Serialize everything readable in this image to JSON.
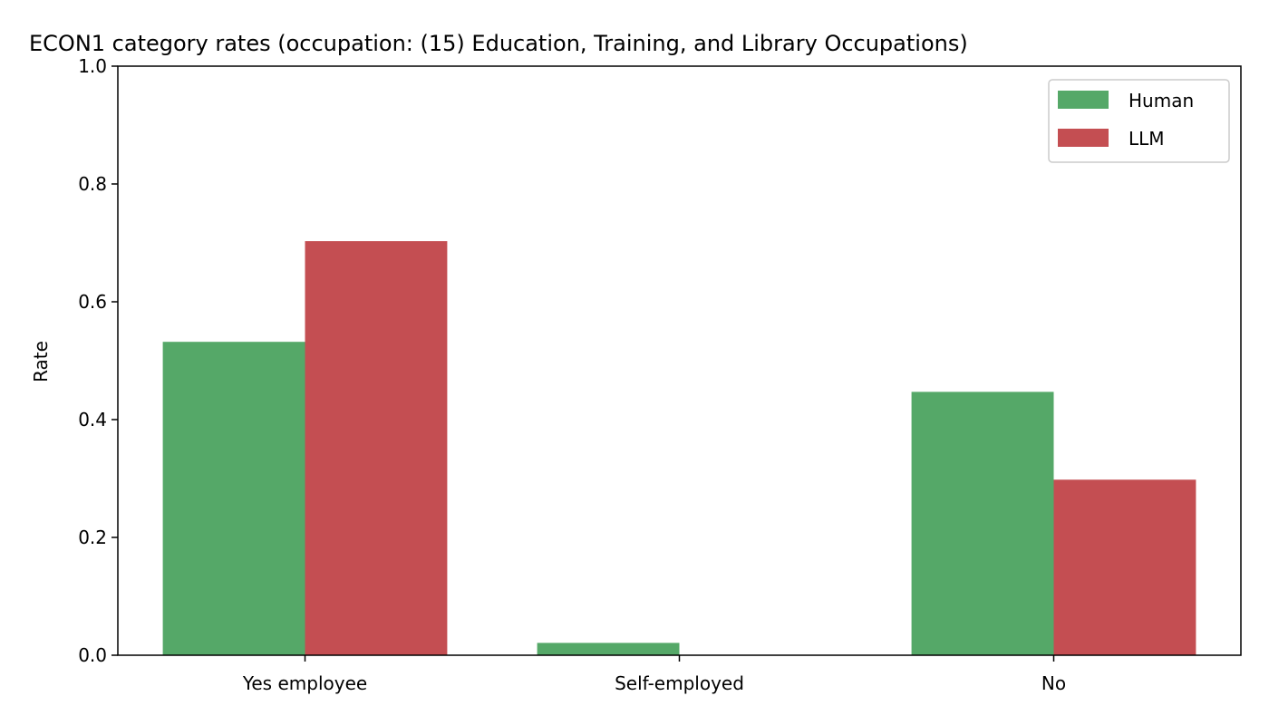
{
  "chart_data": {
    "type": "bar",
    "title": "ECON1 category rates (occupation: (15) Education, Training, and Library Occupations)",
    "xlabel": "",
    "ylabel": "Rate",
    "ylim": [
      0,
      1.0
    ],
    "yticks": [
      "0.0",
      "0.2",
      "0.4",
      "0.6",
      "0.8",
      "1.0"
    ],
    "categories": [
      "Yes employee",
      "Self-employed",
      "No"
    ],
    "series": [
      {
        "name": "Human",
        "color": "#55a868",
        "values": [
          0.532,
          0.021,
          0.447
        ]
      },
      {
        "name": "LLM",
        "color": "#c44e52",
        "values": [
          0.703,
          0.0,
          0.298
        ]
      }
    ],
    "legend": "top-right",
    "grid": false
  }
}
